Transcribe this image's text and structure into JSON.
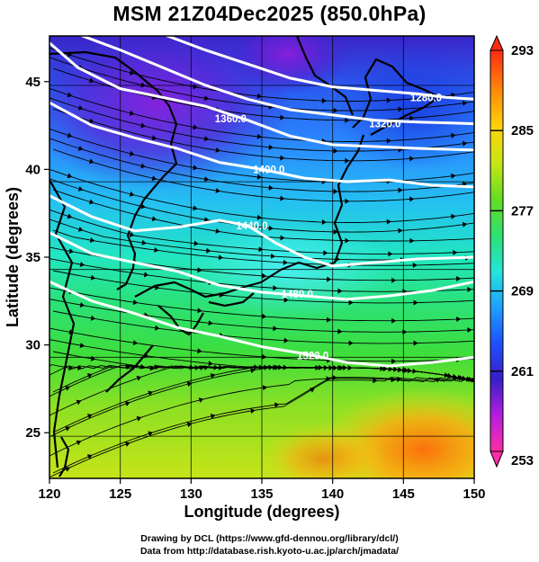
{
  "title": "MSM 21Z04Dec2025 (850.0hPa)",
  "credits": {
    "line1": "Drawing by DCL (https://www.gfd-dennou.org/library/dcl/)",
    "line2": "Data from http://database.rish.kyoto-u.ac.jp/arch/jmadata/"
  },
  "map": {
    "xlabel": "Longitude (degrees)",
    "ylabel": "Latitude  (degrees)",
    "xlim": [
      120,
      150
    ],
    "ylim": [
      22.4,
      47.6
    ],
    "x_ticks": [
      {
        "value": 120,
        "label": "120"
      },
      {
        "value": 125,
        "label": "125"
      },
      {
        "value": 130,
        "label": "130"
      },
      {
        "value": 135,
        "label": "135"
      },
      {
        "value": 140,
        "label": "140"
      },
      {
        "value": 145,
        "label": "145"
      },
      {
        "value": 150,
        "label": "150"
      }
    ],
    "y_ticks": [
      {
        "value": 25,
        "label": "25"
      },
      {
        "value": 30,
        "label": "30"
      },
      {
        "value": 35,
        "label": "35"
      },
      {
        "value": 40,
        "label": "40"
      },
      {
        "value": 45,
        "label": "45"
      }
    ],
    "grid": true,
    "shading": "temperature (K)",
    "vectors": "wind streamlines",
    "contours": [
      {
        "label": "1280.0",
        "lon": 146.6,
        "lat": 44.1,
        "points": [
          [
            128,
            47.7
          ],
          [
            131,
            46.8
          ],
          [
            134,
            46.0
          ],
          [
            137,
            45.2
          ],
          [
            140,
            44.7
          ],
          [
            143,
            44.5
          ],
          [
            146,
            44.3
          ],
          [
            148,
            44.1
          ],
          [
            150,
            44.0
          ]
        ]
      },
      {
        "label": "1320.0",
        "lon": 143.7,
        "lat": 42.6,
        "points": [
          [
            122,
            47.7
          ],
          [
            125,
            46.8
          ],
          [
            128,
            45.8
          ],
          [
            131,
            44.8
          ],
          [
            134,
            44.0
          ],
          [
            137,
            43.4
          ],
          [
            140,
            43.1
          ],
          [
            143,
            42.8
          ],
          [
            146,
            42.7
          ],
          [
            150,
            42.6
          ]
        ]
      },
      {
        "label": "1360.0",
        "lon": 132.8,
        "lat": 42.9,
        "points": [
          [
            120,
            47.2
          ],
          [
            122,
            45.8
          ],
          [
            125,
            44.6
          ],
          [
            128,
            44.1
          ],
          [
            131,
            43.6
          ],
          [
            134,
            42.8
          ],
          [
            137,
            41.9
          ],
          [
            140,
            41.4
          ],
          [
            143,
            41.3
          ],
          [
            146,
            41.2
          ],
          [
            150,
            41.1
          ]
        ]
      },
      {
        "label": "1400.0",
        "lon": 135.5,
        "lat": 40.0,
        "points": [
          [
            120,
            43.8
          ],
          [
            123,
            42.5
          ],
          [
            126,
            41.8
          ],
          [
            129,
            41.2
          ],
          [
            132,
            40.4
          ],
          [
            135,
            40.0
          ],
          [
            138,
            39.5
          ],
          [
            141,
            39.3
          ],
          [
            144,
            39.4
          ],
          [
            147,
            39.1
          ],
          [
            150,
            39.0
          ]
        ]
      },
      {
        "label": "1440.0",
        "lon": 134.3,
        "lat": 36.8,
        "points": [
          [
            120,
            38.5
          ],
          [
            123,
            37.3
          ],
          [
            126,
            36.5
          ],
          [
            129,
            36.7
          ],
          [
            132,
            37.1
          ],
          [
            134,
            36.8
          ],
          [
            136,
            35.8
          ],
          [
            138,
            35.0
          ],
          [
            140,
            34.5
          ],
          [
            143,
            34.7
          ],
          [
            146,
            34.9
          ],
          [
            150,
            35.0
          ]
        ]
      },
      {
        "label": "1480.0",
        "lon": 137.5,
        "lat": 32.9,
        "points": [
          [
            120,
            36.4
          ],
          [
            123,
            35.2
          ],
          [
            126,
            34.7
          ],
          [
            129,
            34.2
          ],
          [
            132,
            33.4
          ],
          [
            135,
            33.0
          ],
          [
            138,
            32.8
          ],
          [
            141,
            32.6
          ],
          [
            144,
            32.8
          ],
          [
            147,
            33.1
          ],
          [
            150,
            33.6
          ]
        ]
      },
      {
        "label": "1520.0",
        "lon": 138.6,
        "lat": 29.4,
        "points": [
          [
            120,
            33.6
          ],
          [
            123,
            32.5
          ],
          [
            126,
            31.8
          ],
          [
            129,
            31.0
          ],
          [
            132,
            30.5
          ],
          [
            135,
            29.9
          ],
          [
            138,
            29.5
          ],
          [
            141,
            29.0
          ],
          [
            144,
            28.8
          ],
          [
            147,
            29.0
          ],
          [
            150,
            29.3
          ]
        ]
      }
    ]
  },
  "colorbar": {
    "min": 253,
    "max": 293,
    "ticks": [
      {
        "value": 293,
        "label": "293"
      },
      {
        "value": 285,
        "label": "285"
      },
      {
        "value": 277,
        "label": "277"
      },
      {
        "value": 269,
        "label": "269"
      },
      {
        "value": 261,
        "label": "261"
      },
      {
        "value": 253,
        "label": "253"
      }
    ],
    "colors": [
      "#ff2da6",
      "#b41ee0",
      "#3a1ec8",
      "#1e50ff",
      "#1ea0ff",
      "#23e6d8",
      "#2ee070",
      "#66dd22",
      "#c8e614",
      "#ffb40a",
      "#ff6a0a",
      "#ff2a14"
    ]
  }
}
